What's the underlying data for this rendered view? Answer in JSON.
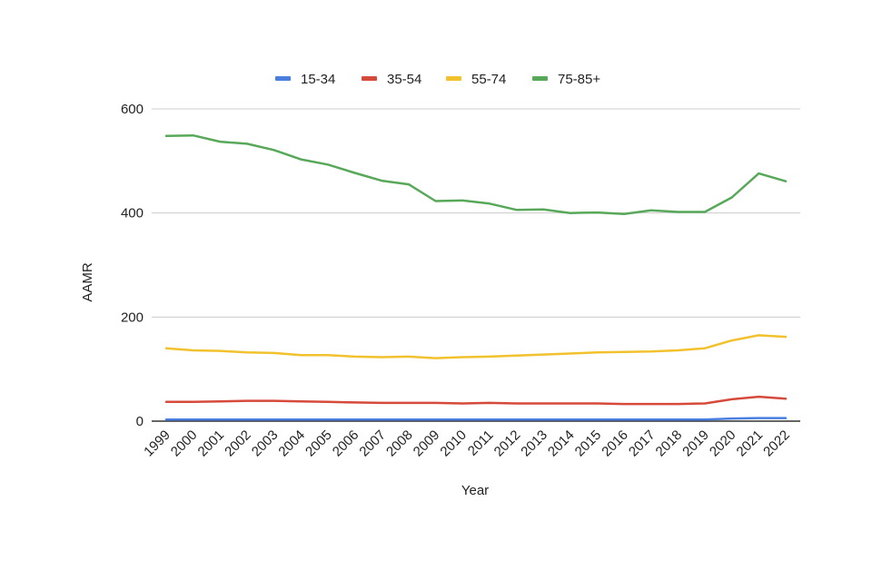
{
  "chart_data": {
    "type": "line",
    "xlabel": "Year",
    "ylabel": "AAMR",
    "ylim": [
      0,
      600
    ],
    "yticks": [
      "0",
      "200",
      "400",
      "600"
    ],
    "grid": "horizontal",
    "legend_position": "top",
    "categories": [
      "1999",
      "2000",
      "2001",
      "2002",
      "2003",
      "2004",
      "2005",
      "2006",
      "2007",
      "2008",
      "2009",
      "2010",
      "2011",
      "2012",
      "2013",
      "2014",
      "2015",
      "2016",
      "2017",
      "2018",
      "2019",
      "2020",
      "2021",
      "2022"
    ],
    "series": [
      {
        "name": "15-34",
        "color": "#4a7fe0",
        "values": [
          3,
          3,
          3,
          3,
          3,
          3,
          3,
          3,
          3,
          3,
          3,
          3,
          3,
          3,
          3,
          3,
          3,
          3,
          3,
          3,
          3,
          5,
          6,
          6
        ]
      },
      {
        "name": "35-54",
        "color": "#d64a3c",
        "values": [
          37,
          37,
          38,
          39,
          39,
          38,
          37,
          36,
          35,
          35,
          35,
          34,
          35,
          34,
          34,
          34,
          34,
          33,
          33,
          33,
          34,
          42,
          47,
          43
        ]
      },
      {
        "name": "55-74",
        "color": "#f2c12e",
        "values": [
          140,
          136,
          135,
          132,
          131,
          127,
          127,
          124,
          123,
          124,
          121,
          123,
          124,
          126,
          128,
          130,
          132,
          133,
          134,
          136,
          140,
          155,
          165,
          162
        ]
      },
      {
        "name": "75-85+",
        "color": "#58a85a",
        "values": [
          548,
          549,
          537,
          533,
          521,
          503,
          493,
          477,
          462,
          455,
          423,
          424,
          418,
          406,
          407,
          400,
          401,
          398,
          405,
          402,
          402,
          430,
          476,
          461
        ]
      }
    ]
  }
}
